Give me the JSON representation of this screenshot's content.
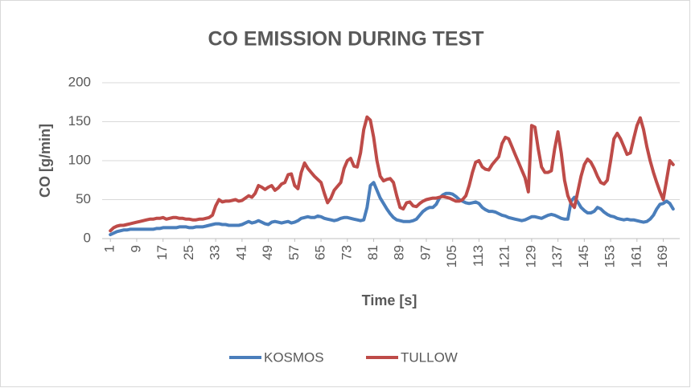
{
  "chart_data": {
    "type": "line",
    "title": "CO EMISSION DURING TEST",
    "x_label": "Time [s]",
    "y_label": "CO [g/min]",
    "x": [
      1,
      2,
      3,
      4,
      5,
      6,
      7,
      8,
      9,
      10,
      11,
      12,
      13,
      14,
      15,
      16,
      17,
      18,
      19,
      20,
      21,
      22,
      23,
      24,
      25,
      26,
      27,
      28,
      29,
      30,
      31,
      32,
      33,
      34,
      35,
      36,
      37,
      38,
      39,
      40,
      41,
      42,
      43,
      44,
      45,
      46,
      47,
      48,
      49,
      50,
      51,
      52,
      53,
      54,
      55,
      56,
      57,
      58,
      59,
      60,
      61,
      62,
      63,
      64,
      65,
      66,
      67,
      68,
      69,
      70,
      71,
      72,
      73,
      74,
      75,
      76,
      77,
      78,
      79,
      80,
      81,
      82,
      83,
      84,
      85,
      86,
      87,
      88,
      89,
      90,
      91,
      92,
      93,
      94,
      95,
      96,
      97,
      98,
      99,
      100,
      101,
      102,
      103,
      104,
      105,
      106,
      107,
      108,
      109,
      110,
      111,
      112,
      113,
      114,
      115,
      116,
      117,
      118,
      119,
      120,
      121,
      122,
      123,
      124,
      125,
      126,
      127,
      128,
      129,
      130,
      131,
      132,
      133,
      134,
      135,
      136,
      137,
      138,
      139,
      140,
      141,
      142,
      143,
      144,
      145,
      146,
      147,
      148,
      149,
      150,
      151,
      152,
      153,
      154,
      155,
      156,
      157,
      158,
      159,
      160,
      161,
      162,
      163,
      164,
      165,
      166,
      167,
      168,
      169,
      170,
      171,
      172
    ],
    "xlim": [
      -1.5,
      174
    ],
    "xticks": [
      1,
      9,
      17,
      25,
      33,
      41,
      49,
      57,
      65,
      73,
      81,
      89,
      97,
      105,
      113,
      121,
      129,
      137,
      145,
      153,
      161,
      169
    ],
    "ylim": [
      0,
      200
    ],
    "yticks": [
      0,
      50,
      100,
      150,
      200
    ],
    "grid": true,
    "legend": "bottom",
    "series": [
      {
        "name": "KOSMOS",
        "color": "#4a7ebb",
        "values": [
          5,
          7,
          9,
          10,
          11,
          11,
          12,
          12,
          12,
          12,
          12,
          12,
          12,
          12,
          13,
          13,
          14,
          14,
          14,
          14,
          14,
          15,
          15,
          15,
          14,
          14,
          15,
          15,
          15,
          16,
          17,
          18,
          19,
          19,
          18,
          18,
          17,
          17,
          17,
          17,
          18,
          20,
          22,
          20,
          21,
          23,
          21,
          19,
          18,
          21,
          22,
          21,
          20,
          21,
          22,
          20,
          21,
          23,
          26,
          27,
          28,
          27,
          27,
          29,
          28,
          26,
          25,
          24,
          23,
          24,
          26,
          27,
          27,
          26,
          25,
          24,
          23,
          24,
          40,
          68,
          72,
          62,
          52,
          45,
          38,
          32,
          27,
          24,
          23,
          22,
          22,
          22,
          23,
          25,
          30,
          35,
          38,
          40,
          40,
          44,
          52,
          56,
          58,
          58,
          57,
          54,
          50,
          48,
          46,
          45,
          46,
          47,
          45,
          40,
          37,
          35,
          35,
          34,
          32,
          30,
          29,
          27,
          26,
          25,
          24,
          23,
          24,
          26,
          28,
          28,
          27,
          26,
          28,
          30,
          31,
          30,
          28,
          26,
          25,
          25,
          48,
          53,
          47,
          40,
          36,
          33,
          33,
          35,
          40,
          38,
          34,
          31,
          29,
          28,
          26,
          25,
          24,
          25,
          24,
          24,
          23,
          22,
          21,
          22,
          25,
          30,
          38,
          44,
          45,
          48,
          45,
          38
        ]
      },
      {
        "name": "TULLOW",
        "color": "#be4b48",
        "values": [
          10,
          14,
          16,
          17,
          17,
          18,
          19,
          20,
          21,
          22,
          23,
          24,
          25,
          25,
          26,
          26,
          27,
          25,
          26,
          27,
          27,
          26,
          26,
          25,
          25,
          24,
          24,
          25,
          25,
          26,
          27,
          30,
          42,
          50,
          47,
          48,
          48,
          49,
          50,
          48,
          49,
          52,
          55,
          53,
          58,
          68,
          66,
          63,
          66,
          68,
          62,
          65,
          70,
          72,
          82,
          83,
          68,
          64,
          85,
          97,
          90,
          85,
          80,
          76,
          72,
          58,
          46,
          52,
          62,
          67,
          72,
          90,
          100,
          103,
          93,
          92,
          110,
          140,
          156,
          152,
          130,
          100,
          80,
          74,
          76,
          77,
          72,
          55,
          40,
          38,
          46,
          47,
          42,
          41,
          45,
          48,
          50,
          51,
          52,
          52,
          53,
          54,
          53,
          52,
          50,
          48,
          48,
          50,
          55,
          68,
          85,
          98,
          100,
          92,
          89,
          88,
          95,
          100,
          105,
          122,
          130,
          128,
          118,
          108,
          98,
          88,
          78,
          60,
          145,
          143,
          115,
          92,
          85,
          85,
          87,
          115,
          137,
          110,
          75,
          55,
          45,
          40,
          60,
          80,
          95,
          102,
          98,
          90,
          80,
          72,
          70,
          75,
          100,
          128,
          135,
          128,
          118,
          108,
          110,
          128,
          145,
          155,
          140,
          118,
          100,
          85,
          72,
          60,
          50,
          75,
          100,
          95
        ]
      }
    ]
  }
}
